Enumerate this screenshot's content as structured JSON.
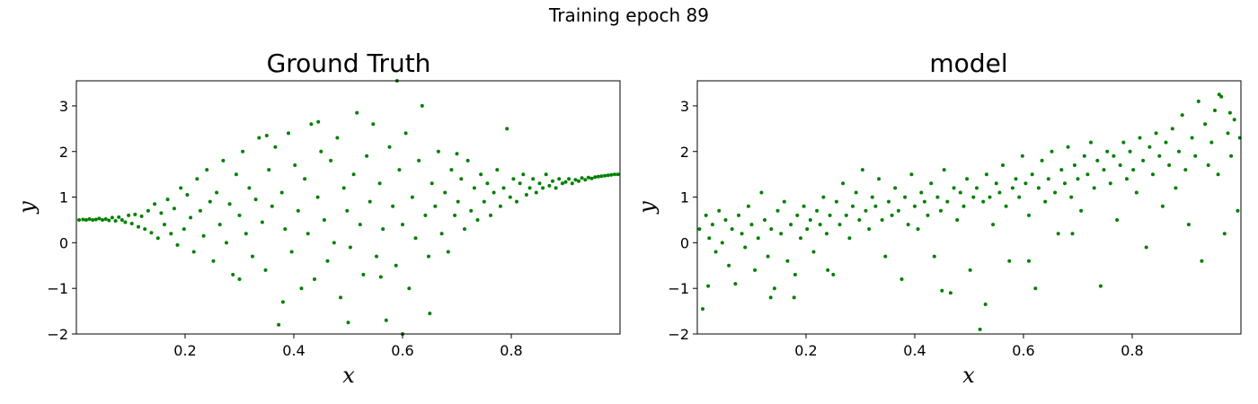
{
  "figure": {
    "suptitle": "Training epoch 89",
    "point_color": "#008000"
  },
  "chart_data": [
    {
      "type": "scatter",
      "title": "Ground Truth",
      "xlabel": "x",
      "ylabel": "y",
      "xlim": [
        0.0,
        1.0
      ],
      "ylim": [
        -2.0,
        3.55
      ],
      "xticks": [
        0.2,
        0.4,
        0.6,
        0.8
      ],
      "xtick_labels": [
        "0.2",
        "0.4",
        "0.6",
        "0.8"
      ],
      "yticks": [
        -2,
        -1,
        0,
        1,
        2,
        3
      ],
      "ytick_labels": [
        "−2",
        "−1",
        "0",
        "1",
        "2",
        "3"
      ],
      "grid": false,
      "legend": "none",
      "color": "#008000",
      "points": [
        [
          0.005,
          0.5
        ],
        [
          0.012,
          0.51
        ],
        [
          0.018,
          0.5
        ],
        [
          0.024,
          0.52
        ],
        [
          0.03,
          0.5
        ],
        [
          0.036,
          0.51
        ],
        [
          0.042,
          0.53
        ],
        [
          0.048,
          0.5
        ],
        [
          0.054,
          0.52
        ],
        [
          0.06,
          0.49
        ],
        [
          0.066,
          0.55
        ],
        [
          0.072,
          0.48
        ],
        [
          0.078,
          0.56
        ],
        [
          0.084,
          0.5
        ],
        [
          0.09,
          0.45
        ],
        [
          0.096,
          0.6
        ],
        [
          0.102,
          0.42
        ],
        [
          0.108,
          0.62
        ],
        [
          0.114,
          0.35
        ],
        [
          0.12,
          0.58
        ],
        [
          0.126,
          0.3
        ],
        [
          0.132,
          0.7
        ],
        [
          0.138,
          0.22
        ],
        [
          0.144,
          0.85
        ],
        [
          0.15,
          0.1
        ],
        [
          0.156,
          0.65
        ],
        [
          0.162,
          0.4
        ],
        [
          0.168,
          0.95
        ],
        [
          0.174,
          0.2
        ],
        [
          0.18,
          0.75
        ],
        [
          0.186,
          -0.05
        ],
        [
          0.192,
          1.2
        ],
        [
          0.198,
          0.3
        ],
        [
          0.204,
          1.05
        ],
        [
          0.21,
          0.55
        ],
        [
          0.216,
          -0.2
        ],
        [
          0.222,
          1.4
        ],
        [
          0.228,
          0.7
        ],
        [
          0.234,
          0.15
        ],
        [
          0.24,
          1.6
        ],
        [
          0.246,
          0.9
        ],
        [
          0.252,
          -0.4
        ],
        [
          0.258,
          1.1
        ],
        [
          0.264,
          0.4
        ],
        [
          0.27,
          1.8
        ],
        [
          0.276,
          0.0
        ],
        [
          0.282,
          0.85
        ],
        [
          0.288,
          -0.7
        ],
        [
          0.294,
          1.5
        ],
        [
          0.3,
          0.6
        ],
        [
          0.306,
          2.0
        ],
        [
          0.312,
          0.2
        ],
        [
          0.318,
          1.2
        ],
        [
          0.324,
          -0.3
        ],
        [
          0.33,
          0.95
        ],
        [
          0.336,
          2.3
        ],
        [
          0.342,
          0.45
        ],
        [
          0.348,
          -0.6
        ],
        [
          0.354,
          1.6
        ],
        [
          0.36,
          0.8
        ],
        [
          0.366,
          2.1
        ],
        [
          0.372,
          -1.8
        ],
        [
          0.378,
          1.1
        ],
        [
          0.384,
          0.3
        ],
        [
          0.39,
          2.4
        ],
        [
          0.396,
          -0.2
        ],
        [
          0.402,
          1.7
        ],
        [
          0.408,
          0.7
        ],
        [
          0.414,
          -1.0
        ],
        [
          0.42,
          1.4
        ],
        [
          0.426,
          0.2
        ],
        [
          0.432,
          2.6
        ],
        [
          0.438,
          -0.8
        ],
        [
          0.444,
          1.0
        ],
        [
          0.45,
          2.0
        ],
        [
          0.456,
          0.5
        ],
        [
          0.462,
          -0.4
        ],
        [
          0.468,
          1.8
        ],
        [
          0.474,
          0.0
        ],
        [
          0.48,
          2.3
        ],
        [
          0.486,
          -1.2
        ],
        [
          0.492,
          1.2
        ],
        [
          0.498,
          0.7
        ],
        [
          0.504,
          -0.1
        ],
        [
          0.51,
          1.5
        ],
        [
          0.516,
          2.85
        ],
        [
          0.522,
          0.4
        ],
        [
          0.528,
          -0.7
        ],
        [
          0.534,
          1.9
        ],
        [
          0.54,
          0.9
        ],
        [
          0.546,
          2.6
        ],
        [
          0.552,
          -0.3
        ],
        [
          0.558,
          1.3
        ],
        [
          0.564,
          0.3
        ],
        [
          0.57,
          -1.7
        ],
        [
          0.576,
          2.1
        ],
        [
          0.582,
          0.8
        ],
        [
          0.588,
          -0.5
        ],
        [
          0.594,
          1.6
        ],
        [
          0.6,
          0.4
        ],
        [
          0.606,
          2.4
        ],
        [
          0.612,
          -1.0
        ],
        [
          0.618,
          1.0
        ],
        [
          0.624,
          0.1
        ],
        [
          0.63,
          1.8
        ],
        [
          0.636,
          3.0
        ],
        [
          0.642,
          0.6
        ],
        [
          0.648,
          -0.3
        ],
        [
          0.654,
          1.3
        ],
        [
          0.66,
          0.8
        ],
        [
          0.666,
          2.0
        ],
        [
          0.672,
          0.2
        ],
        [
          0.678,
          1.1
        ],
        [
          0.684,
          -0.2
        ],
        [
          0.69,
          1.6
        ],
        [
          0.696,
          0.6
        ],
        [
          0.702,
          0.9
        ],
        [
          0.708,
          1.4
        ],
        [
          0.714,
          0.3
        ],
        [
          0.72,
          1.8
        ],
        [
          0.726,
          0.7
        ],
        [
          0.732,
          1.2
        ],
        [
          0.738,
          0.5
        ],
        [
          0.744,
          1.5
        ],
        [
          0.75,
          0.9
        ],
        [
          0.756,
          1.3
        ],
        [
          0.762,
          0.6
        ],
        [
          0.768,
          1.1
        ],
        [
          0.774,
          1.6
        ],
        [
          0.78,
          0.8
        ],
        [
          0.786,
          1.2
        ],
        [
          0.792,
          2.5
        ],
        [
          0.798,
          1.0
        ],
        [
          0.804,
          1.4
        ],
        [
          0.81,
          0.9
        ],
        [
          0.816,
          1.3
        ],
        [
          0.822,
          1.5
        ],
        [
          0.828,
          1.05
        ],
        [
          0.834,
          1.2
        ],
        [
          0.84,
          1.4
        ],
        [
          0.846,
          1.1
        ],
        [
          0.852,
          1.3
        ],
        [
          0.858,
          1.2
        ],
        [
          0.864,
          1.5
        ],
        [
          0.87,
          1.25
        ],
        [
          0.876,
          1.35
        ],
        [
          0.882,
          1.2
        ],
        [
          0.888,
          1.4
        ],
        [
          0.894,
          1.3
        ],
        [
          0.9,
          1.33
        ],
        [
          0.906,
          1.4
        ],
        [
          0.912,
          1.3
        ],
        [
          0.918,
          1.38
        ],
        [
          0.924,
          1.35
        ],
        [
          0.93,
          1.42
        ],
        [
          0.936,
          1.38
        ],
        [
          0.942,
          1.43
        ],
        [
          0.948,
          1.41
        ],
        [
          0.954,
          1.44
        ],
        [
          0.96,
          1.45
        ],
        [
          0.966,
          1.46
        ],
        [
          0.972,
          1.47
        ],
        [
          0.978,
          1.48
        ],
        [
          0.984,
          1.49
        ],
        [
          0.99,
          1.5
        ],
        [
          0.996,
          1.5
        ],
        [
          0.35,
          2.35
        ],
        [
          0.445,
          2.65
        ],
        [
          0.59,
          3.55
        ],
        [
          0.5,
          -1.75
        ],
        [
          0.6,
          -2.0
        ],
        [
          0.65,
          -1.55
        ],
        [
          0.3,
          -0.8
        ],
        [
          0.38,
          -1.3
        ],
        [
          0.56,
          -0.75
        ],
        [
          0.7,
          1.95
        ]
      ]
    },
    {
      "type": "scatter",
      "title": "model",
      "xlabel": "x",
      "ylabel": "y",
      "xlim": [
        0.0,
        1.0
      ],
      "ylim": [
        -2.0,
        3.55
      ],
      "xticks": [
        0.2,
        0.4,
        0.6,
        0.8
      ],
      "xtick_labels": [
        "0.2",
        "0.4",
        "0.6",
        "0.8"
      ],
      "yticks": [
        -2,
        -1,
        0,
        1,
        2,
        3
      ],
      "ytick_labels": [
        "−2",
        "−1",
        "0",
        "1",
        "2",
        "3"
      ],
      "grid": false,
      "legend": "none",
      "color": "#008000",
      "points": [
        [
          0.004,
          0.3
        ],
        [
          0.01,
          -1.45
        ],
        [
          0.016,
          0.6
        ],
        [
          0.022,
          0.1
        ],
        [
          0.028,
          0.4
        ],
        [
          0.034,
          -0.2
        ],
        [
          0.04,
          0.7
        ],
        [
          0.046,
          0.0
        ],
        [
          0.052,
          0.5
        ],
        [
          0.058,
          -0.5
        ],
        [
          0.064,
          0.3
        ],
        [
          0.07,
          -0.9
        ],
        [
          0.076,
          0.6
        ],
        [
          0.082,
          0.2
        ],
        [
          0.088,
          -0.1
        ],
        [
          0.094,
          0.8
        ],
        [
          0.1,
          0.4
        ],
        [
          0.106,
          -0.6
        ],
        [
          0.112,
          0.1
        ],
        [
          0.118,
          1.1
        ],
        [
          0.124,
          0.5
        ],
        [
          0.13,
          -0.3
        ],
        [
          0.136,
          0.3
        ],
        [
          0.142,
          -1.0
        ],
        [
          0.148,
          0.7
        ],
        [
          0.154,
          0.2
        ],
        [
          0.16,
          0.9
        ],
        [
          0.166,
          -0.4
        ],
        [
          0.172,
          0.4
        ],
        [
          0.178,
          -1.2
        ],
        [
          0.184,
          0.6
        ],
        [
          0.19,
          0.1
        ],
        [
          0.196,
          0.8
        ],
        [
          0.202,
          0.3
        ],
        [
          0.208,
          0.5
        ],
        [
          0.214,
          -0.2
        ],
        [
          0.22,
          0.7
        ],
        [
          0.226,
          0.4
        ],
        [
          0.232,
          1.0
        ],
        [
          0.238,
          0.2
        ],
        [
          0.244,
          0.6
        ],
        [
          0.25,
          -0.7
        ],
        [
          0.256,
          0.9
        ],
        [
          0.262,
          0.4
        ],
        [
          0.268,
          1.3
        ],
        [
          0.274,
          0.6
        ],
        [
          0.28,
          0.1
        ],
        [
          0.286,
          0.8
        ],
        [
          0.292,
          1.1
        ],
        [
          0.298,
          0.5
        ],
        [
          0.304,
          1.6
        ],
        [
          0.31,
          0.7
        ],
        [
          0.316,
          0.3
        ],
        [
          0.322,
          1.0
        ],
        [
          0.328,
          0.8
        ],
        [
          0.334,
          1.4
        ],
        [
          0.34,
          0.5
        ],
        [
          0.346,
          -0.3
        ],
        [
          0.352,
          0.9
        ],
        [
          0.358,
          0.6
        ],
        [
          0.364,
          1.2
        ],
        [
          0.37,
          0.7
        ],
        [
          0.376,
          -0.8
        ],
        [
          0.382,
          1.0
        ],
        [
          0.388,
          0.4
        ],
        [
          0.394,
          1.5
        ],
        [
          0.4,
          0.8
        ],
        [
          0.406,
          0.3
        ],
        [
          0.412,
          1.1
        ],
        [
          0.418,
          0.9
        ],
        [
          0.424,
          0.6
        ],
        [
          0.43,
          1.3
        ],
        [
          0.436,
          -0.3
        ],
        [
          0.442,
          1.0
        ],
        [
          0.448,
          0.7
        ],
        [
          0.454,
          1.6
        ],
        [
          0.46,
          0.9
        ],
        [
          0.466,
          -1.1
        ],
        [
          0.472,
          1.2
        ],
        [
          0.478,
          0.5
        ],
        [
          0.484,
          1.1
        ],
        [
          0.49,
          0.8
        ],
        [
          0.496,
          1.4
        ],
        [
          0.502,
          -0.6
        ],
        [
          0.508,
          1.0
        ],
        [
          0.514,
          1.2
        ],
        [
          0.52,
          -1.9
        ],
        [
          0.526,
          0.9
        ],
        [
          0.532,
          1.5
        ],
        [
          0.538,
          1.0
        ],
        [
          0.544,
          0.4
        ],
        [
          0.55,
          1.3
        ],
        [
          0.556,
          1.1
        ],
        [
          0.562,
          1.7
        ],
        [
          0.568,
          0.8
        ],
        [
          0.574,
          -0.4
        ],
        [
          0.58,
          1.2
        ],
        [
          0.586,
          1.4
        ],
        [
          0.592,
          1.0
        ],
        [
          0.598,
          1.9
        ],
        [
          0.604,
          1.3
        ],
        [
          0.61,
          0.6
        ],
        [
          0.616,
          1.5
        ],
        [
          0.622,
          -1.0
        ],
        [
          0.628,
          1.2
        ],
        [
          0.634,
          1.8
        ],
        [
          0.64,
          0.9
        ],
        [
          0.646,
          1.4
        ],
        [
          0.652,
          2.0
        ],
        [
          0.658,
          1.1
        ],
        [
          0.664,
          0.2
        ],
        [
          0.67,
          1.6
        ],
        [
          0.676,
          1.3
        ],
        [
          0.682,
          2.1
        ],
        [
          0.688,
          1.0
        ],
        [
          0.694,
          1.7
        ],
        [
          0.7,
          1.4
        ],
        [
          0.706,
          0.7
        ],
        [
          0.712,
          1.9
        ],
        [
          0.718,
          1.5
        ],
        [
          0.724,
          2.2
        ],
        [
          0.73,
          1.2
        ],
        [
          0.736,
          1.8
        ],
        [
          0.742,
          -0.95
        ],
        [
          0.748,
          1.6
        ],
        [
          0.754,
          2.0
        ],
        [
          0.76,
          1.3
        ],
        [
          0.766,
          1.9
        ],
        [
          0.772,
          0.5
        ],
        [
          0.778,
          1.7
        ],
        [
          0.784,
          2.2
        ],
        [
          0.79,
          1.4
        ],
        [
          0.796,
          2.0
        ],
        [
          0.802,
          1.6
        ],
        [
          0.808,
          1.1
        ],
        [
          0.814,
          2.3
        ],
        [
          0.82,
          1.8
        ],
        [
          0.826,
          -0.1
        ],
        [
          0.832,
          2.1
        ],
        [
          0.838,
          1.5
        ],
        [
          0.844,
          2.4
        ],
        [
          0.85,
          1.9
        ],
        [
          0.856,
          0.8
        ],
        [
          0.862,
          2.2
        ],
        [
          0.868,
          1.7
        ],
        [
          0.874,
          2.5
        ],
        [
          0.88,
          1.2
        ],
        [
          0.886,
          2.0
        ],
        [
          0.892,
          2.8
        ],
        [
          0.898,
          1.6
        ],
        [
          0.904,
          0.4
        ],
        [
          0.91,
          2.3
        ],
        [
          0.916,
          1.9
        ],
        [
          0.922,
          3.1
        ],
        [
          0.928,
          -0.4
        ],
        [
          0.934,
          2.6
        ],
        [
          0.94,
          1.7
        ],
        [
          0.946,
          2.2
        ],
        [
          0.952,
          2.9
        ],
        [
          0.958,
          1.5
        ],
        [
          0.964,
          3.2
        ],
        [
          0.97,
          0.2
        ],
        [
          0.976,
          2.4
        ],
        [
          0.982,
          1.9
        ],
        [
          0.988,
          2.7
        ],
        [
          0.994,
          0.7
        ],
        [
          0.998,
          2.3
        ],
        [
          0.135,
          -1.2
        ],
        [
          0.18,
          -0.7
        ],
        [
          0.24,
          -0.6
        ],
        [
          0.45,
          -1.05
        ],
        [
          0.53,
          -1.35
        ],
        [
          0.61,
          -0.4
        ],
        [
          0.69,
          0.2
        ],
        [
          0.96,
          3.25
        ],
        [
          0.98,
          2.85
        ],
        [
          0.02,
          -0.95
        ]
      ]
    }
  ]
}
